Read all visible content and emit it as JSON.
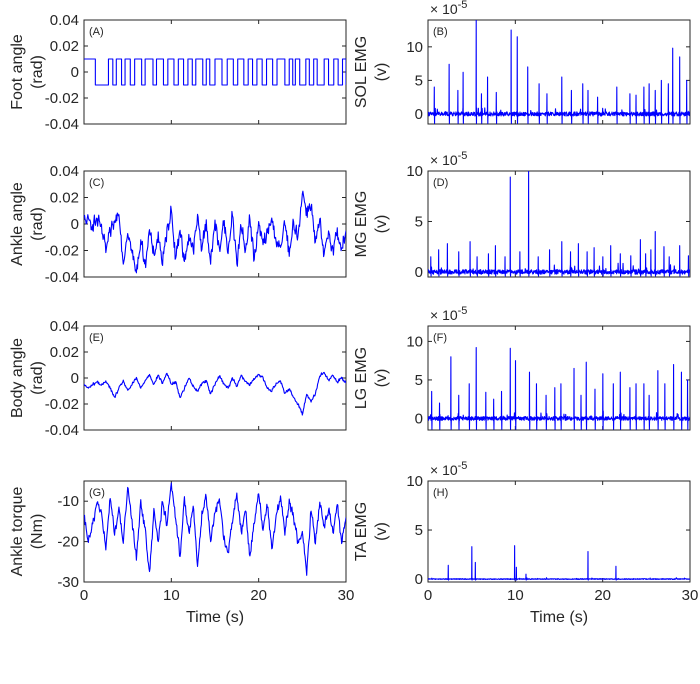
{
  "figure": {
    "line_color": "#0000ff",
    "axis_color": "#262626",
    "x_label": "Time (s)",
    "x_ticks": [
      "0",
      "10",
      "20",
      "30"
    ]
  },
  "chart_data": [
    {
      "id": "A",
      "type": "line",
      "panel_label": "(A)",
      "ylabel": [
        "Foot angle",
        "(rad)"
      ],
      "xlim": [
        0,
        30
      ],
      "ylim": [
        -0.04,
        0.04
      ],
      "yticks": [
        -0.04,
        -0.02,
        0,
        0.02,
        0.04
      ],
      "ytick_labels": [
        "-0.04",
        "-0.02",
        "0",
        "0.02",
        "0.04"
      ],
      "exponent": null,
      "show_xticks": false,
      "x": [
        0,
        1.3,
        1.31,
        30
      ],
      "y": [
        0.01,
        0.01,
        -0.01,
        -0.01
      ],
      "step_signal": {
        "high": 0.01,
        "low": -0.01,
        "start": 1.3,
        "toggle_times": [
          1.3,
          2.8,
          3.3,
          3.7,
          4.3,
          4.7,
          5.3,
          5.8,
          6.6,
          7.0,
          7.9,
          8.3,
          9.1,
          9.6,
          10.3,
          10.8,
          11.4,
          11.9,
          12.4,
          12.8,
          13.6,
          14.0,
          14.4,
          15.0,
          15.8,
          16.4,
          17.1,
          17.6,
          18.3,
          18.8,
          19.3,
          19.8,
          20.4,
          20.9,
          21.6,
          22.1,
          23.0,
          23.5,
          23.9,
          24.2,
          24.7,
          25.4,
          25.8,
          26.3,
          26.7,
          27.5,
          28.0,
          28.6,
          29.1,
          29.6,
          30
        ]
      }
    },
    {
      "id": "B",
      "type": "line",
      "panel_label": "(B)",
      "ylabel": [
        "SOL EMG",
        "(v)"
      ],
      "xlim": [
        0,
        30
      ],
      "ylim": [
        -1.5,
        14
      ],
      "yticks": [
        0,
        5,
        10
      ],
      "ytick_labels": [
        "0",
        "5",
        "10"
      ],
      "exponent": {
        "base": "× 10",
        "power": "-5"
      },
      "show_xticks": false,
      "baseline": 0,
      "noise": 0.6,
      "dip_min": -1.4,
      "spikes": [
        [
          0.7,
          4
        ],
        [
          2.4,
          7.4
        ],
        [
          3.4,
          3.5
        ],
        [
          4.0,
          6.2
        ],
        [
          5.5,
          14
        ],
        [
          6.1,
          3
        ],
        [
          6.8,
          5.5
        ],
        [
          7.8,
          3.2
        ],
        [
          9.5,
          12.5
        ],
        [
          10.2,
          11.5
        ],
        [
          11.4,
          7
        ],
        [
          12.7,
          4.5
        ],
        [
          13.6,
          3
        ],
        [
          15.3,
          5.5
        ],
        [
          16.4,
          3.5
        ],
        [
          17.7,
          4.5
        ],
        [
          18.3,
          3.5
        ],
        [
          19.4,
          2.5
        ],
        [
          21.6,
          4
        ],
        [
          23.1,
          3
        ],
        [
          23.8,
          2.8
        ],
        [
          24.7,
          4
        ],
        [
          25.3,
          4.5
        ],
        [
          26.0,
          3.5
        ],
        [
          26.7,
          5
        ],
        [
          27.5,
          4.5
        ],
        [
          28.0,
          9.8
        ],
        [
          28.8,
          8.5
        ],
        [
          29.6,
          5
        ]
      ]
    },
    {
      "id": "C",
      "type": "line",
      "panel_label": "(C)",
      "ylabel": [
        "Ankle angle",
        "(rad)"
      ],
      "xlim": [
        0,
        30
      ],
      "ylim": [
        -0.04,
        0.04
      ],
      "yticks": [
        -0.04,
        -0.02,
        0,
        0.02,
        0.04
      ],
      "ytick_labels": [
        "-0.04",
        "-0.02",
        "0",
        "0.02",
        "0.04"
      ],
      "exponent": null,
      "show_xticks": false,
      "x": [
        0,
        0.5,
        1,
        1.5,
        2,
        2.5,
        3,
        3.5,
        4,
        4.5,
        5,
        5.5,
        6,
        6.5,
        7,
        7.5,
        8,
        8.5,
        9,
        9.5,
        10,
        10.5,
        11,
        11.5,
        12,
        12.5,
        13,
        13.5,
        14,
        14.5,
        15,
        15.5,
        16,
        16.5,
        17,
        17.5,
        18,
        18.5,
        19,
        19.5,
        20,
        20.5,
        21,
        21.5,
        22,
        22.5,
        23,
        23.5,
        24,
        24.5,
        25,
        25.5,
        26,
        26.5,
        27,
        27.5,
        28,
        28.5,
        29,
        29.5,
        30
      ],
      "y": [
        0.003,
        0.002,
        0.0,
        0.003,
        -0.003,
        -0.02,
        -0.006,
        0.0,
        0.01,
        -0.03,
        -0.005,
        -0.022,
        -0.038,
        -0.012,
        -0.03,
        -0.005,
        -0.025,
        -0.008,
        -0.03,
        -0.005,
        0.01,
        -0.025,
        -0.003,
        -0.03,
        -0.008,
        -0.02,
        0.005,
        -0.018,
        0.002,
        -0.03,
        0.003,
        -0.02,
        0.002,
        -0.022,
        0.008,
        -0.03,
        -0.002,
        -0.02,
        0.005,
        -0.028,
        0.0,
        -0.015,
        -0.008,
        0.004,
        -0.012,
        -0.02,
        0.002,
        -0.025,
        0.001,
        -0.01,
        0.024,
        0.01,
        0.015,
        -0.015,
        0.002,
        -0.025,
        -0.005,
        -0.02,
        -0.005,
        -0.02,
        -0.005
      ],
      "jitter": 0.012
    },
    {
      "id": "D",
      "type": "line",
      "panel_label": "(D)",
      "ylabel": [
        "MG EMG",
        "(v)"
      ],
      "xlim": [
        0,
        30
      ],
      "ylim": [
        -0.5,
        10
      ],
      "yticks": [
        0,
        5,
        10
      ],
      "ytick_labels": [
        "0",
        "5",
        "10"
      ],
      "exponent": {
        "base": "× 10",
        "power": "-5"
      },
      "show_xticks": false,
      "baseline": 0,
      "noise": 0.45,
      "dip_min": -0.4,
      "spikes": [
        [
          0.3,
          1.5
        ],
        [
          1.2,
          2.2
        ],
        [
          2.2,
          2.8
        ],
        [
          3.5,
          2
        ],
        [
          4.8,
          3
        ],
        [
          5.6,
          1.5
        ],
        [
          6.9,
          1.8
        ],
        [
          7.7,
          2.6
        ],
        [
          8.8,
          1.5
        ],
        [
          9.4,
          9.4
        ],
        [
          10.5,
          2
        ],
        [
          11.5,
          10
        ],
        [
          12.6,
          1.5
        ],
        [
          13.9,
          2.2
        ],
        [
          15.3,
          3
        ],
        [
          16.3,
          2
        ],
        [
          17.2,
          2.8
        ],
        [
          18.2,
          2
        ],
        [
          19.0,
          2.4
        ],
        [
          20.0,
          1.5
        ],
        [
          20.9,
          2.6
        ],
        [
          22.0,
          1.8
        ],
        [
          23.2,
          1.6
        ],
        [
          24.3,
          3.2
        ],
        [
          24.9,
          1.8
        ],
        [
          25.5,
          2.2
        ],
        [
          26.0,
          4
        ],
        [
          27.0,
          2.5
        ],
        [
          27.6,
          1.5
        ],
        [
          28.8,
          2.6
        ],
        [
          29.8,
          1.6
        ]
      ]
    },
    {
      "id": "E",
      "type": "line",
      "panel_label": "(E)",
      "ylabel": [
        "Body angle",
        "(rad)"
      ],
      "xlim": [
        0,
        30
      ],
      "ylim": [
        -0.04,
        0.04
      ],
      "yticks": [
        -0.04,
        -0.02,
        0,
        0.02,
        0.04
      ],
      "ytick_labels": [
        "-0.04",
        "-0.02",
        "0",
        "0.02",
        "0.04"
      ],
      "exponent": null,
      "show_xticks": false,
      "x": [
        0,
        0.5,
        1,
        1.5,
        2,
        2.5,
        3,
        3.5,
        4,
        4.5,
        5,
        5.5,
        6,
        6.5,
        7,
        7.5,
        8,
        8.5,
        9,
        9.5,
        10,
        10.5,
        11,
        11.5,
        12,
        12.5,
        13,
        13.5,
        14,
        14.5,
        15,
        15.5,
        16,
        16.5,
        17,
        17.5,
        18,
        18.5,
        19,
        19.5,
        20,
        20.5,
        21,
        21.5,
        22,
        22.5,
        23,
        23.5,
        24,
        24.5,
        25,
        25.5,
        26,
        26.5,
        27,
        27.5,
        28,
        28.5,
        29,
        29.5,
        30
      ],
      "y": [
        -0.005,
        -0.008,
        -0.005,
        -0.003,
        -0.006,
        -0.002,
        -0.008,
        -0.015,
        -0.008,
        -0.002,
        -0.01,
        -0.005,
        0.0,
        -0.008,
        -0.002,
        0.003,
        -0.005,
        0.002,
        -0.004,
        0.004,
        -0.005,
        -0.003,
        -0.015,
        -0.008,
        0.0,
        -0.006,
        -0.01,
        -0.004,
        -0.002,
        -0.012,
        -0.005,
        0.002,
        -0.004,
        -0.008,
        0.0,
        -0.006,
        0.002,
        -0.003,
        -0.005,
        -0.001,
        0.003,
        0.0,
        -0.008,
        -0.01,
        -0.004,
        -0.002,
        -0.012,
        -0.008,
        -0.015,
        -0.02,
        -0.028,
        -0.012,
        -0.018,
        -0.012,
        0.002,
        0.004,
        -0.002,
        0.002,
        -0.003,
        0.0,
        -0.004
      ],
      "jitter": 0.0025
    },
    {
      "id": "F",
      "type": "line",
      "panel_label": "(F)",
      "ylabel": [
        "LG EMG",
        "(v)"
      ],
      "xlim": [
        0,
        30
      ],
      "ylim": [
        -1.5,
        12
      ],
      "yticks": [
        0,
        5,
        10
      ],
      "ytick_labels": [
        "0",
        "5",
        "10"
      ],
      "exponent": {
        "base": "× 10",
        "power": "-5"
      },
      "show_xticks": false,
      "baseline": 0,
      "noise": 0.5,
      "dip_min": -1.4,
      "spikes": [
        [
          0.4,
          3.5
        ],
        [
          1.3,
          2
        ],
        [
          2.6,
          8
        ],
        [
          3.5,
          3
        ],
        [
          4.7,
          4.5
        ],
        [
          5.5,
          9.2
        ],
        [
          6.6,
          3.4
        ],
        [
          7.5,
          2.5
        ],
        [
          8.4,
          3.5
        ],
        [
          9.4,
          9.1
        ],
        [
          10.0,
          7.5
        ],
        [
          11.6,
          6
        ],
        [
          12.4,
          4.5
        ],
        [
          13.5,
          3
        ],
        [
          14.5,
          4
        ],
        [
          15.2,
          4.5
        ],
        [
          16.7,
          6.5
        ],
        [
          17.5,
          3
        ],
        [
          18.1,
          7.3
        ],
        [
          19.1,
          3.8
        ],
        [
          20.0,
          5.8
        ],
        [
          21.2,
          4.5
        ],
        [
          22.0,
          6
        ],
        [
          23.1,
          4
        ],
        [
          23.8,
          4.5
        ],
        [
          24.7,
          4.5
        ],
        [
          25.3,
          3
        ],
        [
          26.3,
          6.2
        ],
        [
          27.1,
          4.5
        ],
        [
          28.1,
          7
        ],
        [
          29.0,
          6
        ],
        [
          29.7,
          5
        ]
      ]
    },
    {
      "id": "G",
      "type": "line",
      "panel_label": "(G)",
      "ylabel": [
        "Ankle torque",
        "(Nm)"
      ],
      "xlim": [
        0,
        30
      ],
      "ylim": [
        -30,
        -5
      ],
      "yticks": [
        -30,
        -20,
        -10
      ],
      "ytick_labels": [
        "-30",
        "-20",
        "-10"
      ],
      "exponent": null,
      "show_xticks": true,
      "x": [
        0,
        0.5,
        1,
        1.5,
        2,
        2.5,
        3,
        3.5,
        4,
        4.5,
        5,
        5.5,
        6,
        6.5,
        7,
        7.5,
        8,
        8.5,
        9,
        9.5,
        10,
        10.5,
        11,
        11.5,
        12,
        12.5,
        13,
        13.5,
        14,
        14.5,
        15,
        15.5,
        16,
        16.5,
        17,
        17.5,
        18,
        18.5,
        19,
        19.5,
        20,
        20.5,
        21,
        21.5,
        22,
        22.5,
        23,
        23.5,
        24,
        24.5,
        25,
        25.5,
        26,
        26.5,
        27,
        27.5,
        28,
        28.5,
        29,
        29.5,
        30
      ],
      "y": [
        -14,
        -20,
        -16,
        -10,
        -13,
        -22,
        -9,
        -18,
        -12,
        -20,
        -7,
        -15,
        -24,
        -10,
        -17,
        -28,
        -12,
        -20,
        -10,
        -16,
        -6,
        -14,
        -24,
        -9,
        -18,
        -11,
        -26,
        -13,
        -9,
        -20,
        -13,
        -9,
        -19,
        -23,
        -15,
        -8,
        -18,
        -12,
        -24,
        -15,
        -8,
        -17,
        -11,
        -22,
        -14,
        -9,
        -18,
        -10,
        -14,
        -20,
        -18,
        -28,
        -12,
        -20,
        -10,
        -16,
        -12,
        -18,
        -11,
        -20,
        -14
      ],
      "jitter": 2.5
    },
    {
      "id": "H",
      "type": "line",
      "panel_label": "(H)",
      "ylabel": [
        "TA EMG",
        "(v)"
      ],
      "xlim": [
        0,
        30
      ],
      "ylim": [
        -0.3,
        10
      ],
      "yticks": [
        0,
        5,
        10
      ],
      "ytick_labels": [
        "0",
        "5",
        "10"
      ],
      "exponent": {
        "base": "× 10",
        "power": "-5"
      },
      "show_xticks": true,
      "baseline": 0,
      "noise": 0.08,
      "dip_min": -0.1,
      "spikes": [
        [
          2.3,
          1.4
        ],
        [
          5.0,
          3.3
        ],
        [
          5.4,
          1.7
        ],
        [
          9.9,
          3.4
        ],
        [
          10.1,
          1.2
        ],
        [
          11.2,
          0.5
        ],
        [
          18.3,
          2.8
        ],
        [
          21.5,
          1.3
        ]
      ]
    }
  ]
}
